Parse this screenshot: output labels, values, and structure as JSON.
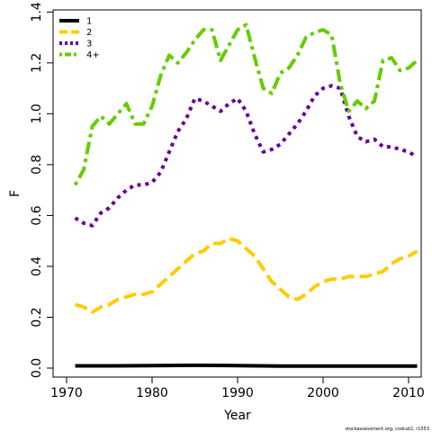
{
  "chart_data": {
    "type": "line",
    "xlabel": "Year",
    "ylabel": "F",
    "xlim": [
      1970,
      2011
    ],
    "ylim": [
      -0.02,
      1.4
    ],
    "xticks": [
      1970,
      1980,
      1990,
      2000,
      2010
    ],
    "yticks": [
      "0.0",
      "0.2",
      "0.4",
      "0.6",
      "0.8",
      "1.0",
      "1.2",
      "1.4"
    ],
    "legend_position": "top-left",
    "grid": false,
    "credit": "stockassessment.org, codcat2, r1553",
    "series": [
      {
        "name": "1",
        "color": "#000000",
        "dash": "solid",
        "x": [
          1971,
          1975,
          1980,
          1985,
          1990,
          1995,
          2000,
          2005,
          2011
        ],
        "y": [
          0.009,
          0.009,
          0.01,
          0.011,
          0.01,
          0.008,
          0.008,
          0.008,
          0.008
        ]
      },
      {
        "name": "2",
        "color": "#FFCC00",
        "dash": "dashed",
        "x": [
          1971,
          1972,
          1973,
          1974,
          1975,
          1976,
          1977,
          1978,
          1979,
          1980,
          1981,
          1982,
          1983,
          1984,
          1985,
          1986,
          1987,
          1988,
          1989,
          1990,
          1991,
          1992,
          1993,
          1994,
          1995,
          1996,
          1997,
          1998,
          1999,
          2000,
          2001,
          2002,
          2003,
          2004,
          2005,
          2006,
          2007,
          2008,
          2009,
          2010,
          2011
        ],
        "y": [
          0.25,
          0.24,
          0.22,
          0.24,
          0.25,
          0.27,
          0.28,
          0.29,
          0.29,
          0.3,
          0.33,
          0.36,
          0.39,
          0.42,
          0.45,
          0.46,
          0.49,
          0.49,
          0.51,
          0.5,
          0.47,
          0.44,
          0.39,
          0.34,
          0.31,
          0.28,
          0.27,
          0.29,
          0.32,
          0.34,
          0.35,
          0.35,
          0.36,
          0.36,
          0.36,
          0.37,
          0.38,
          0.41,
          0.43,
          0.44,
          0.46
        ]
      },
      {
        "name": "3",
        "color": "#660099",
        "dash": "dotted",
        "x": [
          1971,
          1972,
          1973,
          1974,
          1975,
          1976,
          1977,
          1978,
          1979,
          1980,
          1981,
          1982,
          1983,
          1984,
          1985,
          1986,
          1987,
          1988,
          1989,
          1990,
          1991,
          1992,
          1993,
          1994,
          1995,
          1996,
          1997,
          1998,
          1999,
          2000,
          2001,
          2002,
          2003,
          2004,
          2005,
          2006,
          2007,
          2008,
          2009,
          2010,
          2011
        ],
        "y": [
          0.59,
          0.57,
          0.56,
          0.61,
          0.63,
          0.67,
          0.7,
          0.72,
          0.72,
          0.73,
          0.77,
          0.85,
          0.93,
          0.98,
          1.06,
          1.05,
          1.03,
          1.01,
          1.04,
          1.06,
          1.01,
          0.92,
          0.85,
          0.86,
          0.88,
          0.92,
          0.96,
          1.01,
          1.07,
          1.1,
          1.11,
          1.1,
          0.99,
          0.91,
          0.89,
          0.9,
          0.87,
          0.87,
          0.86,
          0.85,
          0.83
        ]
      },
      {
        "name": "4+",
        "color": "#66CC00",
        "dash": "dashdot",
        "x": [
          1971,
          1972,
          1973,
          1974,
          1975,
          1976,
          1977,
          1978,
          1979,
          1980,
          1981,
          1982,
          1983,
          1984,
          1985,
          1986,
          1987,
          1988,
          1989,
          1990,
          1991,
          1992,
          1993,
          1994,
          1995,
          1996,
          1997,
          1998,
          1999,
          2000,
          2001,
          2002,
          2003,
          2004,
          2005,
          2006,
          2007,
          2008,
          2009,
          2010,
          2011
        ],
        "y": [
          0.72,
          0.78,
          0.95,
          0.99,
          0.96,
          1.0,
          1.04,
          0.96,
          0.96,
          1.03,
          1.15,
          1.23,
          1.2,
          1.24,
          1.29,
          1.33,
          1.33,
          1.21,
          1.27,
          1.33,
          1.35,
          1.22,
          1.1,
          1.08,
          1.16,
          1.18,
          1.23,
          1.3,
          1.32,
          1.33,
          1.31,
          1.12,
          1.01,
          1.05,
          1.02,
          1.05,
          1.21,
          1.22,
          1.17,
          1.18,
          1.21
        ]
      }
    ]
  }
}
